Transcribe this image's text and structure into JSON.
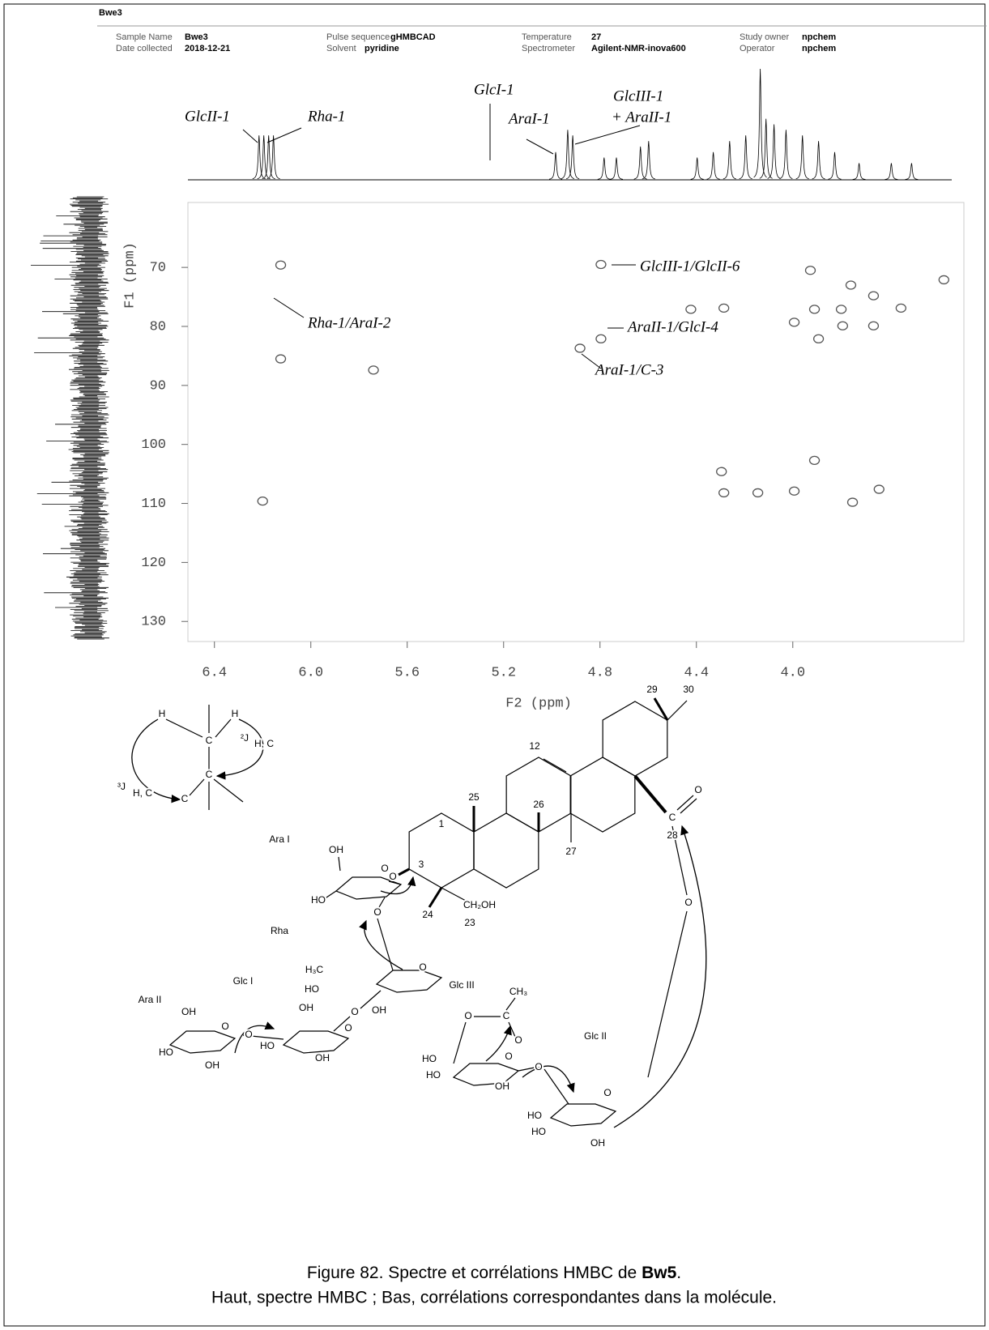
{
  "header": {
    "title": "Bwe3",
    "fields": [
      {
        "label": "Sample Name",
        "value": "Bwe3"
      },
      {
        "label": "Date collected",
        "value": "2018-12-21"
      },
      {
        "label": "Pulse sequence",
        "value": "gHMBCAD"
      },
      {
        "label": "Solvent",
        "value": "pyridine"
      },
      {
        "label": "Temperature",
        "value": "27"
      },
      {
        "label": "Spectrometer",
        "value": "Agilent-NMR-inova600"
      },
      {
        "label": "Study owner",
        "value": "npchem"
      },
      {
        "label": "Operator",
        "value": "npchem"
      }
    ]
  },
  "spectrum": {
    "f2_axis": {
      "label": "F2 (ppm)",
      "lim": [
        6.51,
        3.29
      ],
      "ticks": [
        6.4,
        {
          "value": 6,
          "label": "6.0"
        },
        5.6,
        5.2,
        4.8,
        4.4,
        {
          "value": 4,
          "label": "4.0"
        }
      ]
    },
    "f1_axis": {
      "label": "F1 (ppm)",
      "lim": [
        59,
        133.4
      ],
      "ticks": [
        70,
        80,
        90,
        100,
        110,
        120,
        130
      ]
    },
    "top_peaks": [
      [
        6.215,
        40
      ],
      [
        6.195,
        40
      ],
      [
        6.175,
        40
      ],
      [
        6.155,
        40
      ],
      [
        4.984,
        25
      ],
      [
        4.934,
        45
      ],
      [
        4.913,
        40
      ],
      [
        4.783,
        20
      ],
      [
        4.732,
        20
      ],
      [
        4.632,
        30
      ],
      [
        4.598,
        35
      ],
      [
        4.397,
        20
      ],
      [
        4.33,
        25
      ],
      [
        4.262,
        35
      ],
      [
        4.195,
        40
      ],
      [
        4.135,
        100
      ],
      [
        4.111,
        55
      ],
      [
        4.078,
        50
      ],
      [
        4.028,
        45
      ],
      [
        3.96,
        40
      ],
      [
        3.893,
        35
      ],
      [
        3.826,
        25
      ],
      [
        3.725,
        15
      ],
      [
        3.591,
        15
      ],
      [
        3.507,
        15
      ]
    ],
    "top_annotations": [
      "GlcII-1",
      "Rha-1",
      "GlcI-1",
      "AraI-1",
      "GlcIII-1",
      "+ AraII-1"
    ],
    "crosspeaks": [
      [
        6.125,
        69.6
      ],
      [
        6.125,
        85.5
      ],
      [
        4.796,
        69.5
      ],
      [
        4.796,
        82.1
      ],
      [
        4.883,
        83.7
      ],
      [
        3.927,
        70.5
      ],
      [
        3.759,
        73
      ],
      [
        3.665,
        74.8
      ],
      [
        3.665,
        79.9
      ],
      [
        3.793,
        79.9
      ],
      [
        3.893,
        82.1
      ],
      [
        3.994,
        79.3
      ],
      [
        3.91,
        77.1
      ],
      [
        3.799,
        77.1
      ],
      [
        3.551,
        76.9
      ],
      [
        4.423,
        77.1
      ],
      [
        4.286,
        76.9
      ],
      [
        3.373,
        72.1
      ],
      [
        3.91,
        102.7
      ],
      [
        4.296,
        104.6
      ],
      [
        4.286,
        108.2
      ],
      [
        4.145,
        108.2
      ],
      [
        3.994,
        107.9
      ],
      [
        3.752,
        109.8
      ],
      [
        3.642,
        107.6
      ],
      [
        5.74,
        87.4
      ],
      [
        6.2,
        109.6
      ]
    ],
    "annotations": [
      "GlcIII-1/GlcII-6",
      "Rha-1/AraI-2",
      "AraII-1/GlcI-4",
      "AraI-1/C-3"
    ]
  },
  "molecule": {
    "labels": [
      "H",
      "H",
      "C",
      "C",
      "C",
      "³J",
      "H, C",
      "²J",
      "H, C",
      "29",
      "30",
      "12",
      "25",
      "26",
      "1",
      "3",
      "27",
      "28",
      "24",
      "23",
      "CH₂OH",
      "O",
      "C",
      "O",
      "O",
      "Ara I",
      "Rha",
      "Glc I",
      "Ara II",
      "Glc III",
      "Glc II",
      "OH",
      "HO",
      "O",
      "O",
      "H₃C",
      "HO",
      "O",
      "OH",
      "O",
      "OH",
      "HO",
      "OH",
      "O",
      "O",
      "OH",
      "HO",
      "OH",
      "O",
      "HO",
      "HO",
      "OH",
      "O",
      "O",
      "C",
      "CH₃",
      "O",
      "O",
      "HO",
      "HO",
      "OH",
      "O"
    ]
  },
  "caption": {
    "prefix": "Figure 82. Spectre et corrélations HMBC de ",
    "compound": "Bw5",
    "suffix": ".",
    "line2": "Haut, spectre HMBC ; Bas, corrélations correspondantes dans la molécule."
  }
}
